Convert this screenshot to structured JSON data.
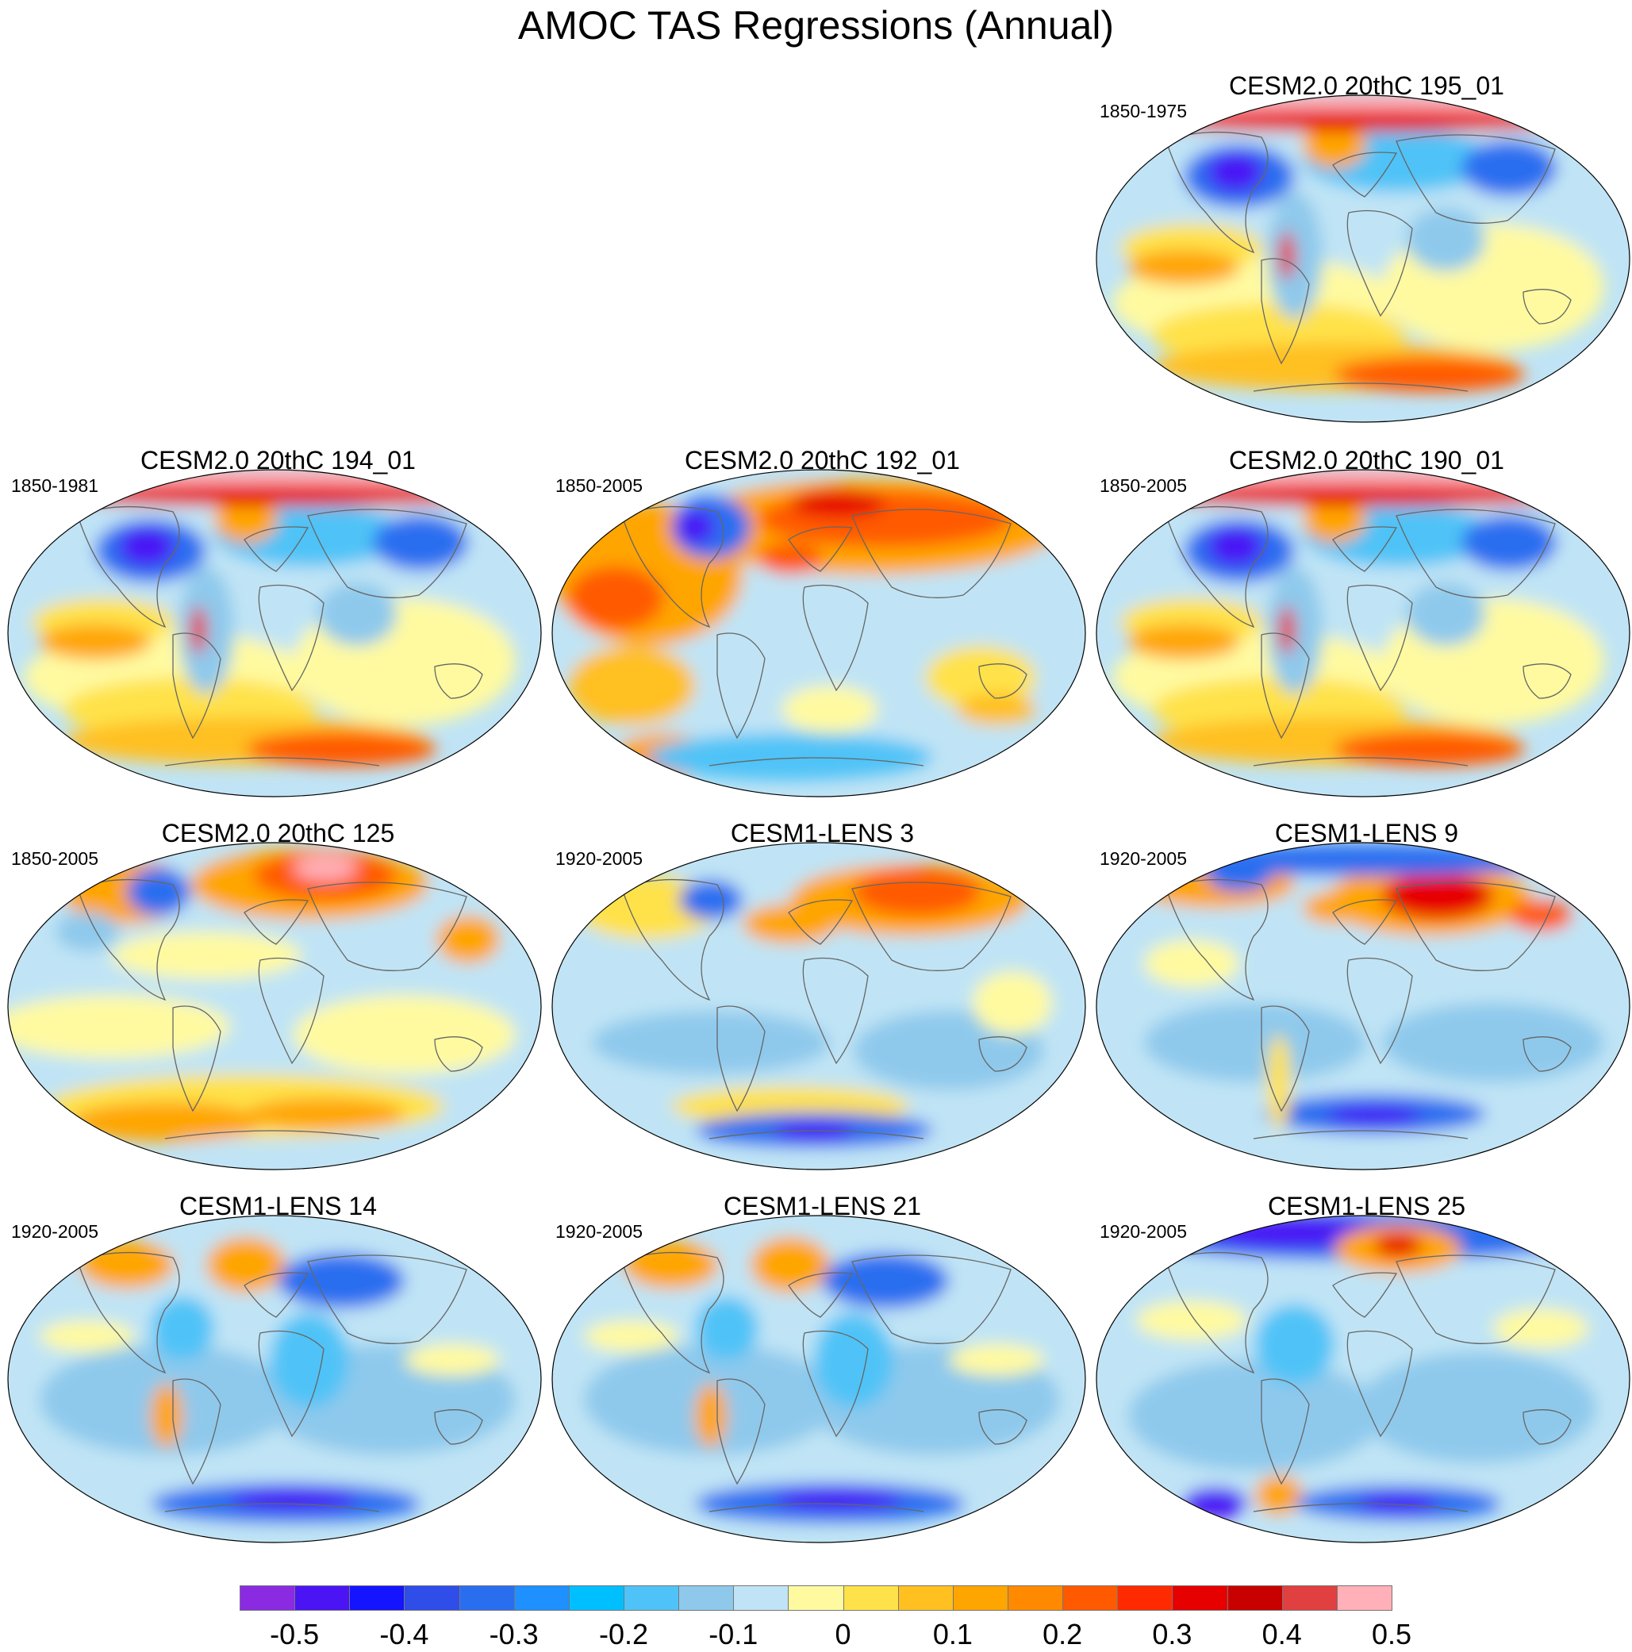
{
  "title": "AMOC TAS Regressions (Annual)",
  "panels": [
    {
      "title": "CESM2.0 20thC 195_01",
      "period": "1850-1975",
      "row": 0,
      "col": 2,
      "pattern": "arc-red-cold-na"
    },
    {
      "title": "CESM2.0 20thC 194_01",
      "period": "1850-1981",
      "row": 1,
      "col": 0,
      "pattern": "arc-red-cold-na"
    },
    {
      "title": "CESM2.0 20thC 192_01",
      "period": "1850-2005",
      "row": 1,
      "col": 1,
      "pattern": "warm-north"
    },
    {
      "title": "CESM2.0 20thC 190_01",
      "period": "1850-2005",
      "row": 1,
      "col": 2,
      "pattern": "arc-red-cold-na"
    },
    {
      "title": "CESM2.0 20thC 125",
      "period": "1850-2005",
      "row": 2,
      "col": 0,
      "pattern": "warm-eurasia"
    },
    {
      "title": "CESM1-LENS 3",
      "period": "1920-2005",
      "row": 2,
      "col": 1,
      "pattern": "lens-mixed"
    },
    {
      "title": "CESM1-LENS 9",
      "period": "1920-2005",
      "row": 2,
      "col": 2,
      "pattern": "lens-siberia-warm"
    },
    {
      "title": "CESM1-LENS 14",
      "period": "1920-2005",
      "row": 3,
      "col": 0,
      "pattern": "lens-cool"
    },
    {
      "title": "CESM1-LENS 21",
      "period": "1920-2005",
      "row": 3,
      "col": 1,
      "pattern": "lens-cool"
    },
    {
      "title": "CESM1-LENS 25",
      "period": "1920-2005",
      "row": 3,
      "col": 2,
      "pattern": "lens-cold-arctic"
    }
  ],
  "colorbar": {
    "colors": [
      "#8a2be2",
      "#4a14f5",
      "#1414ff",
      "#2f4de8",
      "#2a6ef0",
      "#1e90ff",
      "#00bfff",
      "#4fc3f7",
      "#8ec9ec",
      "#c0e4f5",
      "#fffaa0",
      "#ffe24a",
      "#ffc020",
      "#ffa500",
      "#ff8a00",
      "#ff5a00",
      "#ff2a00",
      "#e60000",
      "#c80000",
      "#e04040",
      "#ffb0b8"
    ],
    "labels": [
      "-0.5",
      "-0.4",
      "-0.3",
      "-0.2",
      "-0.1",
      "0",
      "0.1",
      "0.2",
      "0.3",
      "0.4",
      "0.5"
    ]
  }
}
